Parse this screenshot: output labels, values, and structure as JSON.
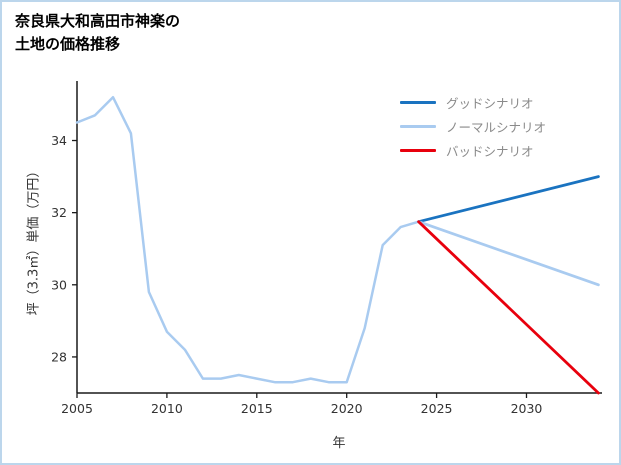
{
  "page": {
    "background_color": "#ffffff",
    "border_color": "#bcd6ec"
  },
  "header": {
    "title_line1": "奈良県大和高田市神楽の",
    "title_line2": "土地の価格推移"
  },
  "axes": {
    "xlabel": "年",
    "ylabel": "坪（3.3㎡）単価（万円）"
  },
  "legend": {
    "items": [
      {
        "label": "グッドシナリオ",
        "color": "#1a73c0"
      },
      {
        "label": "ノーマルシナリオ",
        "color": "#a9cbf0"
      },
      {
        "label": "バッドシナリオ",
        "color": "#e8000d"
      }
    ]
  },
  "chart_data": {
    "type": "line",
    "title": "奈良県大和高田市神楽の 土地の価格推移",
    "xlabel": "年",
    "ylabel": "坪（3.3㎡）単価（万円）",
    "xlim": [
      2005,
      2034.2
    ],
    "ylim": [
      27.0,
      35.65
    ],
    "xticks": [
      2005,
      2010,
      2015,
      2020,
      2025,
      2030
    ],
    "yticks": [
      28,
      30,
      32,
      34
    ],
    "grid": false,
    "legend_position": "upper right",
    "axis_color": "#1a1a1a",
    "series": [
      {
        "name": "",
        "color": "#a9cbf0",
        "width": 2.5,
        "x": [
          2005,
          2006,
          2007,
          2008,
          2009,
          2010,
          2011,
          2012,
          2013,
          2014,
          2015,
          2016,
          2017,
          2018,
          2019,
          2020,
          2021,
          2022,
          2023,
          2024
        ],
        "y": [
          34.5,
          34.7,
          35.2,
          34.2,
          29.8,
          28.7,
          28.2,
          27.4,
          27.4,
          27.5,
          27.4,
          27.3,
          27.3,
          27.4,
          27.3,
          27.3,
          28.8,
          31.1,
          31.6,
          31.75
        ]
      },
      {
        "name": "グッドシナリオ",
        "color": "#1a73c0",
        "width": 2.8,
        "x": [
          2024,
          2034
        ],
        "y": [
          31.75,
          33.0
        ]
      },
      {
        "name": "ノーマルシナリオ",
        "color": "#a9cbf0",
        "width": 2.8,
        "x": [
          2024,
          2034
        ],
        "y": [
          31.75,
          30.0
        ]
      },
      {
        "name": "バッドシナリオ",
        "color": "#e8000d",
        "width": 2.8,
        "x": [
          2024,
          2034
        ],
        "y": [
          31.75,
          27.0
        ]
      }
    ]
  }
}
